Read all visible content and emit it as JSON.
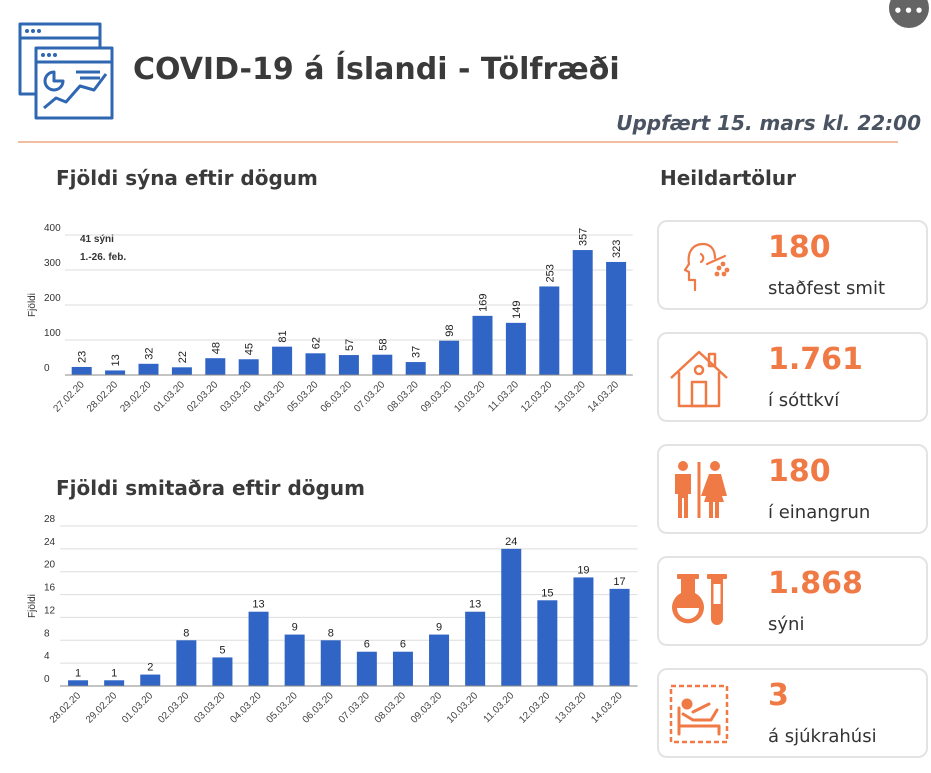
{
  "header": {
    "title": "COVID-19 á Íslandi - Tölfræði",
    "updated": "Uppfært 15. mars kl. 22:00",
    "more_button": "•••"
  },
  "stats": {
    "title": "Heildartölur",
    "cards": [
      {
        "value": "180",
        "label": "staðfest smit",
        "icon": "test-swab-icon"
      },
      {
        "value": "1.761",
        "label": "í sóttkví",
        "icon": "house-icon"
      },
      {
        "value": "180",
        "label": "í einangrun",
        "icon": "people-icon"
      },
      {
        "value": "1.868",
        "label": "sýni",
        "icon": "test-tubes-icon"
      },
      {
        "value": "3",
        "label": "á sjúkrahúsi",
        "icon": "hospital-bed-icon"
      }
    ]
  },
  "colors": {
    "bar": "#3065c5",
    "accent": "#f07a45"
  },
  "chart_data": [
    {
      "type": "bar",
      "title": "Fjöldi sýna eftir dögum",
      "ylabel": "Fjöldi",
      "xlabel": "",
      "ylim": [
        0,
        400
      ],
      "yticks": [
        0,
        100,
        200,
        300,
        400
      ],
      "annotation": [
        "41 sýni",
        "1.-26. feb."
      ],
      "categories": [
        "27.02.20",
        "28.02.20",
        "29.02.20",
        "01.03.20",
        "02.03.20",
        "03.03.20",
        "04.03.20",
        "05.03.20",
        "06.03.20",
        "07.03.20",
        "08.03.20",
        "09.03.20",
        "10.03.20",
        "11.03.20",
        "12.03.20",
        "13.03.20",
        "14.03.20"
      ],
      "values": [
        23,
        13,
        32,
        22,
        48,
        45,
        81,
        62,
        57,
        58,
        37,
        98,
        169,
        149,
        253,
        357,
        323
      ]
    },
    {
      "type": "bar",
      "title": "Fjöldi smitaðra eftir dögum",
      "ylabel": "Fjöldi",
      "xlabel": "",
      "ylim": [
        0,
        28
      ],
      "yticks": [
        0,
        4,
        8,
        12,
        16,
        20,
        24,
        28
      ],
      "categories": [
        "28.02.20",
        "29.02.20",
        "01.03.20",
        "02.03.20",
        "03.03.20",
        "04.03.20",
        "05.03.20",
        "06.03.20",
        "07.03.20",
        "08.03.20",
        "09.03.20",
        "10.03.20",
        "11.03.20",
        "12.03.20",
        "13.03.20",
        "14.03.20"
      ],
      "values": [
        1,
        1,
        2,
        8,
        5,
        13,
        9,
        8,
        6,
        6,
        9,
        13,
        24,
        15,
        19,
        17
      ]
    }
  ]
}
